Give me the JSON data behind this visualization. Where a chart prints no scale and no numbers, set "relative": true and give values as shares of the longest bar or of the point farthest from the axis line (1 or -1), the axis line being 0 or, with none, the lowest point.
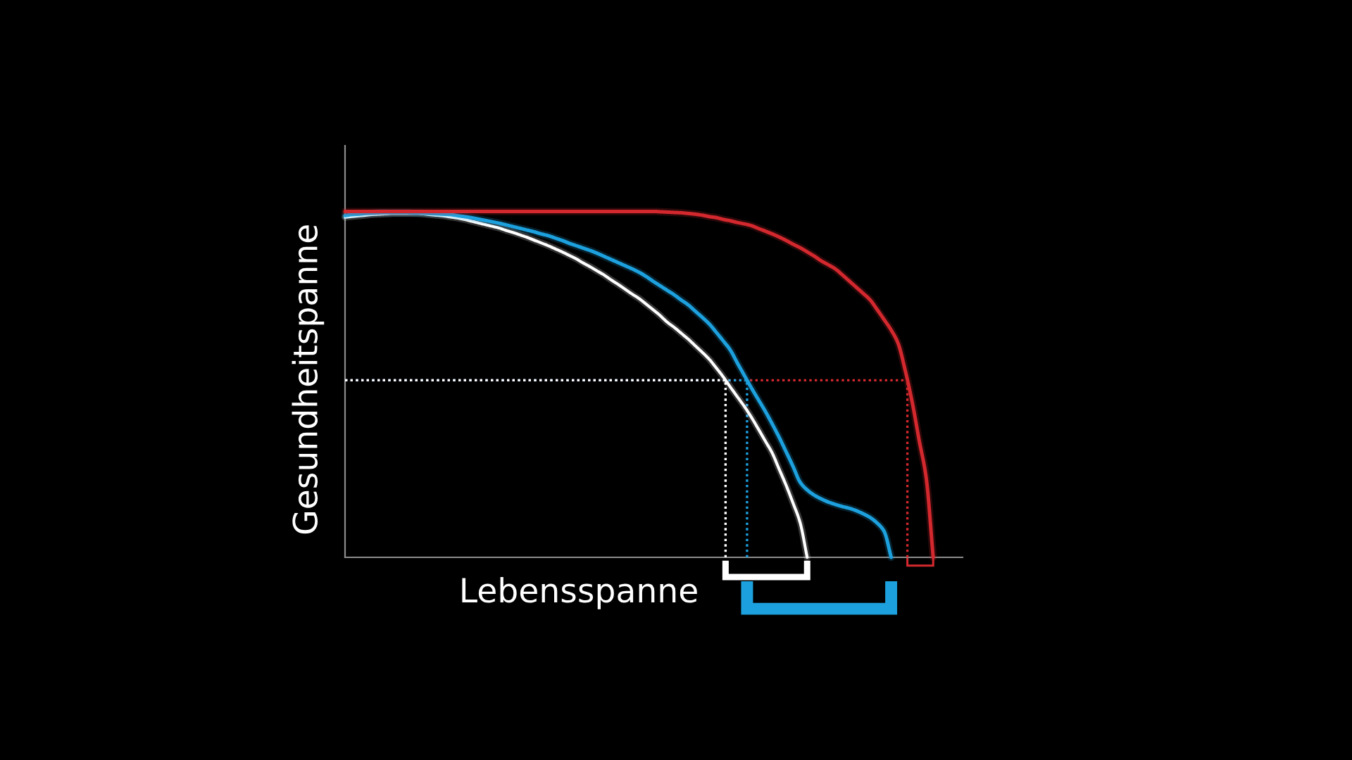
{
  "chart_data": {
    "type": "line",
    "relative": true,
    "xlabel": "Lebensspanne",
    "ylabel": "Gesundheitspanne",
    "categories": [
      null,
      null,
      null,
      null,
      null,
      null,
      null,
      null,
      null,
      null,
      null,
      null,
      null,
      null,
      null,
      null,
      null,
      null,
      null,
      null,
      null,
      null,
      null,
      null,
      null,
      null,
      null,
      null,
      null,
      null,
      null,
      null,
      null,
      null,
      null,
      null,
      null,
      null,
      null,
      null,
      null,
      null,
      null,
      null,
      null,
      null,
      null,
      null,
      null,
      null,
      null,
      null,
      null,
      null,
      null,
      null,
      null,
      null,
      null,
      null,
      null,
      null,
      null,
      null,
      null,
      null,
      null,
      null,
      null,
      null,
      null,
      null,
      null,
      null,
      null,
      null,
      null,
      null,
      null,
      null,
      null,
      null,
      null,
      null,
      null
    ],
    "series": [
      {
        "color": "#ffffff",
        "values": [
          0.983,
          0.985,
          0.987,
          0.989,
          0.991,
          0.992,
          0.993,
          0.994,
          0.994,
          0.994,
          0.994,
          0.993,
          0.991,
          0.989,
          0.987,
          0.984,
          0.981,
          0.977,
          0.972,
          0.967,
          0.962,
          0.957,
          0.952,
          0.945,
          0.939,
          0.932,
          0.925,
          0.917,
          0.909,
          0.901,
          0.892,
          0.883,
          0.873,
          0.863,
          0.851,
          0.84,
          0.828,
          0.816,
          0.802,
          0.789,
          0.775,
          0.761,
          0.748,
          0.732,
          0.716,
          0.699,
          0.68,
          0.665,
          0.648,
          0.631,
          0.612,
          0.593,
          0.573,
          0.548,
          0.522,
          0.493,
          0.465,
          0.437,
          0.406,
          0.372,
          0.337,
          0.302,
          0.255,
          0.208,
          0.156,
          0.1,
          0.0,
          null,
          null,
          null,
          null,
          null,
          null,
          null,
          null,
          null,
          null,
          null,
          null,
          null,
          null,
          null,
          null,
          null,
          null
        ]
      },
      {
        "color": "#1da1de",
        "values": [
          0.988,
          0.991,
          0.992,
          0.994,
          0.995,
          0.996,
          0.996,
          0.996,
          0.996,
          0.996,
          0.995,
          0.995,
          0.994,
          0.993,
          0.992,
          0.991,
          0.988,
          0.985,
          0.982,
          0.978,
          0.974,
          0.97,
          0.966,
          0.961,
          0.956,
          0.951,
          0.946,
          0.941,
          0.935,
          0.93,
          0.923,
          0.916,
          0.908,
          0.901,
          0.894,
          0.887,
          0.879,
          0.87,
          0.861,
          0.852,
          0.843,
          0.834,
          0.824,
          0.812,
          0.798,
          0.785,
          0.772,
          0.759,
          0.744,
          0.73,
          0.712,
          0.694,
          0.675,
          0.651,
          0.626,
          0.6,
          0.563,
          0.527,
          0.491,
          0.457,
          0.423,
          0.386,
          0.347,
          0.305,
          0.262,
          0.217,
          0.195,
          0.18,
          0.169,
          0.16,
          0.153,
          0.147,
          0.142,
          0.135,
          0.126,
          0.115,
          0.099,
          0.075,
          0.0,
          null,
          null,
          null,
          null,
          null,
          null
        ]
      },
      {
        "color": "#d3282e",
        "values": [
          1.0,
          1.0,
          1.0,
          1.0,
          1.0,
          1.0,
          1.0,
          1.0,
          1.0,
          1.0,
          1.0,
          1.0,
          1.0,
          1.0,
          1.0,
          1.0,
          1.0,
          1.0,
          1.0,
          1.0,
          1.0,
          1.0,
          1.0,
          1.0,
          1.0,
          1.0,
          1.0,
          1.0,
          1.0,
          1.0,
          1.0,
          1.0,
          1.0,
          1.0,
          1.0,
          1.0,
          1.0,
          1.0,
          1.0,
          1.0,
          1.0,
          1.0,
          1.0,
          1.0,
          1.0,
          0.999,
          0.998,
          0.997,
          0.996,
          0.994,
          0.992,
          0.989,
          0.985,
          0.982,
          0.977,
          0.973,
          0.968,
          0.964,
          0.959,
          0.951,
          0.943,
          0.935,
          0.926,
          0.916,
          0.905,
          0.895,
          0.883,
          0.871,
          0.857,
          0.846,
          0.834,
          0.817,
          0.799,
          0.781,
          0.763,
          0.744,
          0.716,
          0.687,
          0.657,
          0.618,
          0.541,
          0.449,
          0.338,
          0.23,
          0.0
        ]
      }
    ],
    "ref_lines": [
      {
        "axis": "y",
        "value": 0.512,
        "line_style": "dotted",
        "color": "#ffffff"
      },
      {
        "axis": "y",
        "value": 0.512,
        "line_style": "dotted",
        "color": "#1da1de"
      },
      {
        "axis": "y",
        "value": 0.512,
        "line_style": "dotted",
        "color": "#d3282e"
      }
    ]
  }
}
